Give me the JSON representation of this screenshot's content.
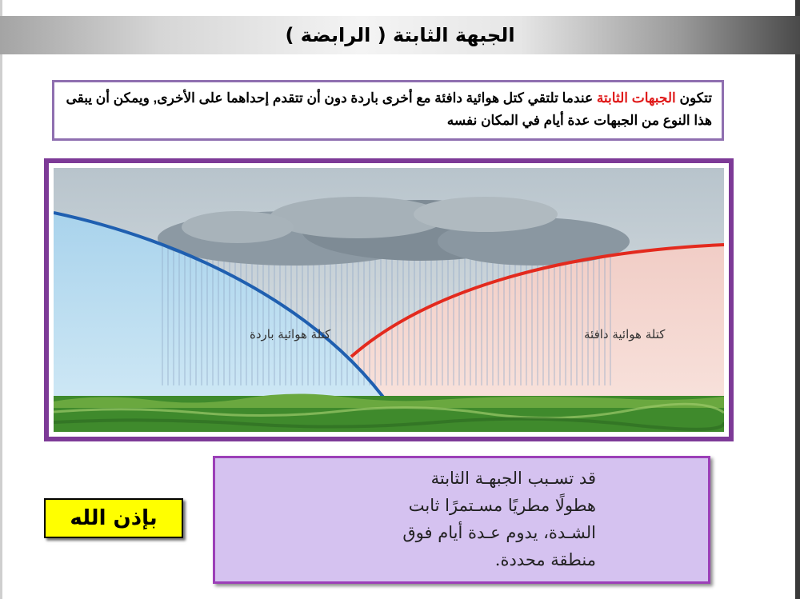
{
  "title": "الجبهة الثابتة ( الرابضة )",
  "definition": {
    "prefix": "تتكون ",
    "highlight": "الجبهات الثابتة",
    "highlight_color": "#e01a1a",
    "rest": " عندما تلتقي كتل هوائية دافئة مع أخرى باردة دون أن تتقدم إحداهما على الأخرى, ويمكن أن يبقى هذا النوع من الجبهات عدة أيام في المكان نفسه"
  },
  "figure": {
    "cold_air_label": "كتلة هوائية باردة",
    "warm_air_label": "كتلة هوائية دافئة",
    "cold_front_color": "#1f5fb0",
    "warm_front_color": "#e32a1e",
    "cold_air_color": "#bfe0f2",
    "warm_air_color": "#f6d9d3",
    "ground_color": "#3f8a2c",
    "frame_color": "#7d3a97"
  },
  "note": {
    "lines": [
      "قد تسـبب الجبهـة الثابتة",
      "هطولًا مطريًا مسـتمرًا ثابت",
      "الشـدة، يدوم عـدة أيام فوق",
      "منطقة محددة."
    ]
  },
  "badge": "بإذن الله"
}
